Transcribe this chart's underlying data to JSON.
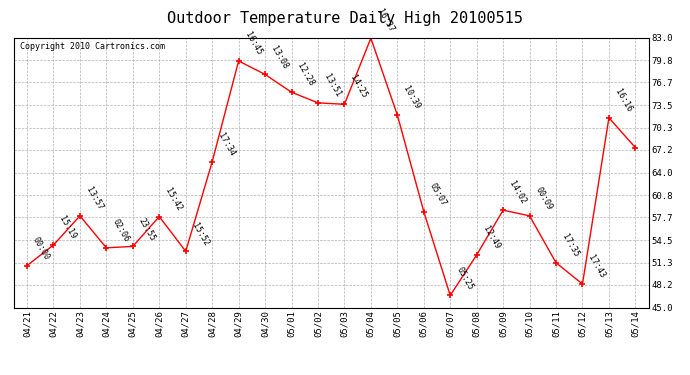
{
  "title": "Outdoor Temperature Daily High 20100515",
  "copyright": "Copyright 2010 Cartronics.com",
  "x_labels": [
    "04/21",
    "04/22",
    "04/23",
    "04/24",
    "04/25",
    "04/26",
    "04/27",
    "04/28",
    "04/29",
    "04/30",
    "05/01",
    "05/02",
    "05/03",
    "05/04",
    "05/05",
    "05/06",
    "05/07",
    "05/08",
    "05/09",
    "05/10",
    "05/11",
    "05/12",
    "05/13",
    "05/14"
  ],
  "y_values": [
    50.9,
    53.8,
    57.9,
    53.4,
    53.6,
    57.8,
    52.9,
    65.5,
    79.7,
    77.8,
    75.3,
    73.8,
    73.6,
    82.9,
    72.1,
    58.5,
    46.7,
    52.4,
    58.7,
    57.9,
    51.3,
    48.3,
    71.7,
    67.5
  ],
  "time_labels": [
    "00:00",
    "15:19",
    "13:57",
    "02:06",
    "23:55",
    "15:42",
    "15:52",
    "17:34",
    "16:45",
    "13:08",
    "12:28",
    "13:51",
    "14:25",
    "16:37",
    "10:39",
    "05:07",
    "05:25",
    "12:49",
    "14:02",
    "00:09",
    "17:35",
    "17:43",
    "16:16",
    ""
  ],
  "ylim": [
    45.0,
    83.0
  ],
  "yticks": [
    45.0,
    48.2,
    51.3,
    54.5,
    57.7,
    60.8,
    64.0,
    67.2,
    70.3,
    73.5,
    76.7,
    79.8,
    83.0
  ],
  "line_color": "red",
  "marker_color": "red",
  "bg_color": "white",
  "grid_color": "#aaaaaa",
  "title_fontsize": 11,
  "tick_fontsize": 6.5,
  "annotation_fontsize": 6.0,
  "copyright_fontsize": 6.0
}
